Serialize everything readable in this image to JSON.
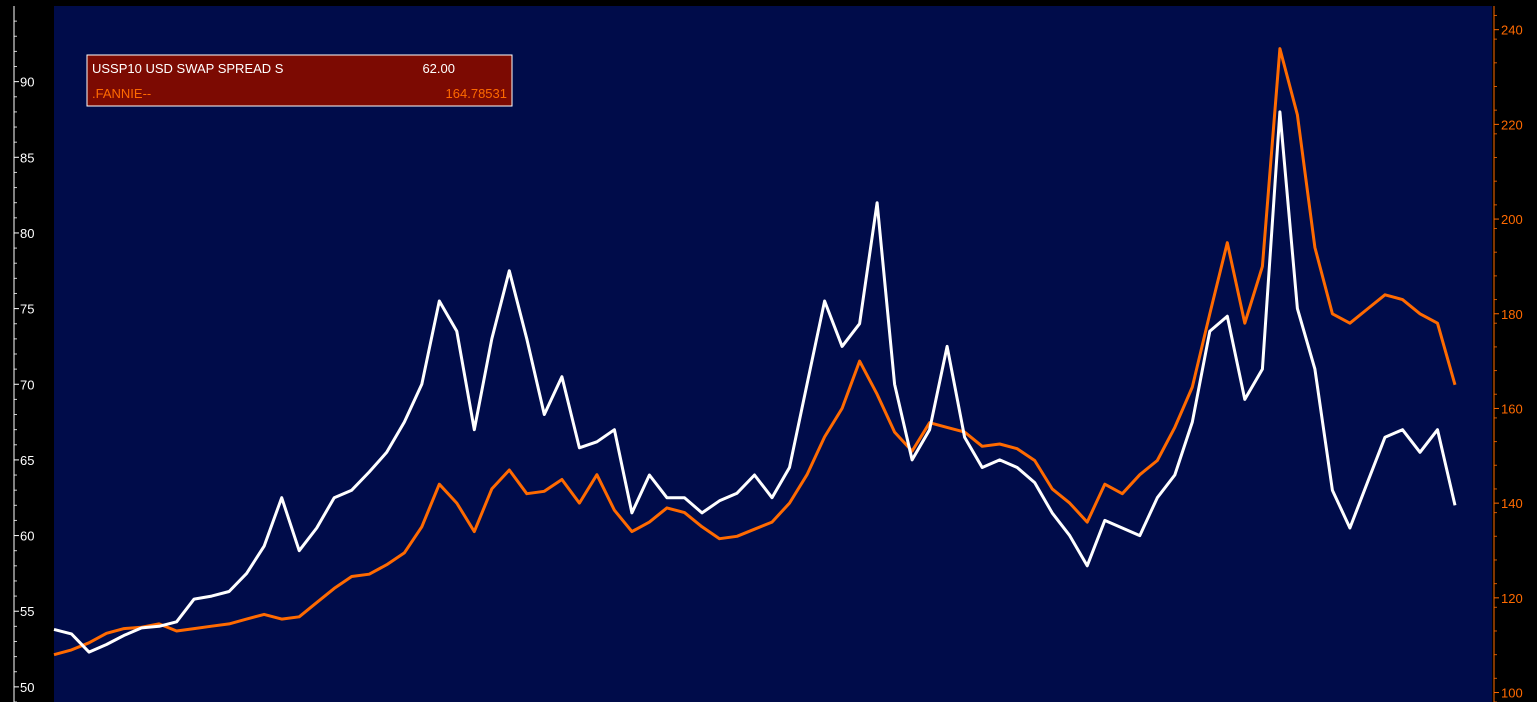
{
  "chart_data": {
    "type": "line",
    "title": "",
    "xlabel": "",
    "ylabel": "",
    "background_color": "#000c4a",
    "grid": false,
    "legend_placement": "top-left",
    "legend_background": "#7c0a02",
    "x_range": [
      0,
      400
    ],
    "y_left": {
      "ylim": [
        49,
        95
      ],
      "ticks": [
        50,
        55,
        60,
        65,
        70,
        75,
        80,
        85,
        90
      ],
      "tick_labels": [
        "50",
        "55",
        "60",
        "65",
        "70",
        "75",
        "80",
        "85",
        "90"
      ],
      "color": "#ffffff"
    },
    "y_right": {
      "ylim": [
        98,
        245
      ],
      "ticks": [
        100,
        120,
        140,
        160,
        180,
        200,
        220,
        240
      ],
      "tick_labels": [
        "100",
        "120",
        "140",
        "160",
        "180",
        "200",
        "220",
        "240"
      ],
      "color": "#ff6a00"
    },
    "legend": [
      {
        "label": "USSP10  USD SWAP SPREAD S",
        "value": "62.00",
        "color": "#ffffff"
      },
      {
        "label": ".FANNIE--",
        "value": "164.78531",
        "color": "#ff6a00"
      }
    ],
    "series": [
      {
        "name": "USSP10  USD SWAP SPREAD S",
        "axis": "left",
        "color": "#ffffff",
        "x": [
          0,
          5,
          10,
          15,
          20,
          25,
          30,
          35,
          40,
          45,
          50,
          55,
          60,
          65,
          70,
          75,
          80,
          85,
          90,
          95,
          100,
          105,
          110,
          115,
          120,
          125,
          130,
          135,
          140,
          145,
          150,
          155,
          160,
          165,
          170,
          175,
          180,
          185,
          190,
          195,
          200,
          205,
          210,
          215,
          220,
          225,
          230,
          235,
          240,
          245,
          250,
          255,
          260,
          265,
          270,
          275,
          280,
          285,
          290,
          295,
          300,
          305,
          310,
          315,
          320,
          325,
          330,
          335,
          340,
          345,
          350,
          355,
          360,
          365,
          370,
          375,
          380,
          385,
          390,
          395,
          400
        ],
        "values": [
          53.8,
          53.5,
          52.3,
          52.8,
          53.4,
          53.9,
          54.0,
          54.3,
          55.8,
          56.0,
          56.3,
          57.5,
          59.3,
          62.5,
          59.0,
          60.5,
          62.5,
          63.0,
          64.2,
          65.5,
          67.5,
          70.0,
          75.5,
          73.5,
          67.0,
          73.0,
          77.5,
          73.0,
          68.0,
          70.5,
          65.8,
          66.2,
          67.0,
          61.5,
          64.0,
          62.5,
          62.5,
          61.5,
          62.3,
          62.8,
          64.0,
          62.5,
          64.5,
          70.0,
          75.5,
          72.5,
          74.0,
          82.0,
          70.0,
          65.0,
          67.0,
          72.5,
          66.5,
          64.5,
          65.0,
          64.5,
          63.5,
          61.5,
          60.0,
          58.0,
          61.0,
          60.5,
          60.0,
          62.5,
          64.0,
          67.5,
          73.5,
          74.5,
          69.0,
          71.0,
          88.0,
          75.0,
          71.0,
          63.0,
          60.5,
          63.5,
          66.5,
          67.0,
          65.5,
          67.0,
          62.0
        ]
      },
      {
        "name": ".FANNIE--",
        "axis": "right",
        "color": "#ff6a00",
        "x": [
          0,
          5,
          10,
          15,
          20,
          25,
          30,
          35,
          40,
          45,
          50,
          55,
          60,
          65,
          70,
          75,
          80,
          85,
          90,
          95,
          100,
          105,
          110,
          115,
          120,
          125,
          130,
          135,
          140,
          145,
          150,
          155,
          160,
          165,
          170,
          175,
          180,
          185,
          190,
          195,
          200,
          205,
          210,
          215,
          220,
          225,
          230,
          235,
          240,
          245,
          250,
          255,
          260,
          265,
          270,
          275,
          280,
          285,
          290,
          295,
          300,
          305,
          310,
          315,
          320,
          325,
          330,
          335,
          340,
          345,
          350,
          355,
          360,
          365,
          370,
          375,
          380,
          385,
          390,
          395,
          400
        ],
        "values": [
          108.0,
          109.0,
          110.5,
          112.5,
          113.5,
          113.8,
          114.5,
          113.0,
          113.5,
          114.0,
          114.5,
          115.5,
          116.5,
          115.5,
          116.0,
          119.0,
          122.0,
          124.5,
          125.0,
          127.0,
          129.5,
          135.0,
          144.0,
          140.0,
          134.0,
          143.0,
          147.0,
          142.0,
          142.5,
          145.0,
          140.0,
          146.0,
          138.5,
          134.0,
          136.0,
          139.0,
          138.0,
          135.0,
          132.5,
          133.0,
          134.5,
          136.0,
          140.0,
          146.0,
          154.0,
          160.0,
          170.0,
          163.0,
          155.0,
          151.0,
          157.0,
          156.0,
          155.0,
          152.0,
          152.5,
          151.5,
          149.0,
          143.0,
          140.0,
          136.0,
          144.0,
          142.0,
          146.0,
          149.0,
          156.0,
          164.5,
          180.0,
          195.0,
          178.0,
          190.0,
          236.0,
          222.0,
          194.0,
          180.0,
          178.0,
          181.0,
          184.0,
          183.0,
          180.0,
          178.0,
          165.0
        ]
      }
    ]
  }
}
